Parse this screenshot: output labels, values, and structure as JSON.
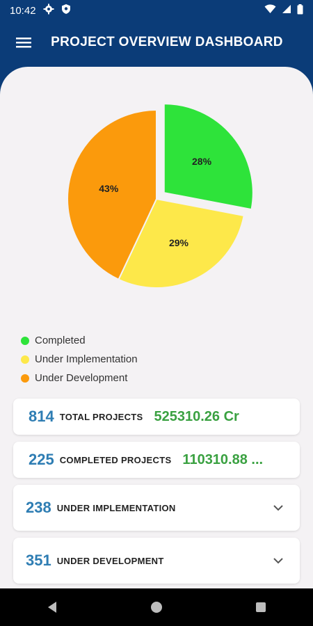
{
  "status": {
    "time": "10:42",
    "icons": [
      "gear-icon",
      "shield-icon",
      "wifi-icon",
      "signal-icon",
      "battery-icon"
    ]
  },
  "app_bar": {
    "title": "PROJECT OVERVIEW DASHBOARD",
    "menu_icon": "hamburger-menu-icon"
  },
  "chart_data": {
    "type": "pie",
    "categories": [
      "Completed",
      "Under Implementation",
      "Under Development"
    ],
    "values": [
      28,
      29,
      43
    ],
    "labels": [
      "28%",
      "29%",
      "43%"
    ],
    "colors": [
      "#2ee33a",
      "#fde84a",
      "#fb9a0c"
    ],
    "exploded": "Completed",
    "legend_position": "bottom-left"
  },
  "cards": [
    {
      "count": "814",
      "label": "TOTAL PROJECTS",
      "amount": "525310.26 Cr"
    },
    {
      "count": "225",
      "label": "COMPLETED PROJECTS",
      "amount": "110310.88 ..."
    },
    {
      "count": "238",
      "label": "UNDER IMPLEMENTATION",
      "expand_icon": "chevron-down-icon"
    },
    {
      "count": "351",
      "label": "UNDER DEVELOPMENT",
      "expand_icon": "chevron-down-icon"
    }
  ],
  "nav": {
    "icons": [
      "back-icon",
      "home-icon",
      "recents-icon"
    ]
  }
}
